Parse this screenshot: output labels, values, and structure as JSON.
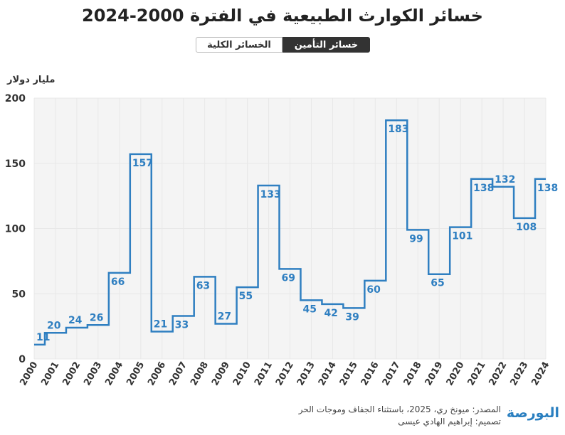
{
  "header": {
    "title": "خسائر الكوارث الطبيعية في الفترة 2000-2024"
  },
  "toggle": {
    "active": "خسائر التأمين",
    "inactive": "الخسائر الكلية"
  },
  "footer": {
    "source": "المصدر: ميونخ ري، 2025، باستثناء الجفاف وموجات الحر",
    "design": "تصميم: إبراهيم الهادي عيسى",
    "logo": "البورصة"
  },
  "colors": {
    "line": "#2f7fc1",
    "plot_bg": "#f4f4f4"
  },
  "chart_data": {
    "type": "line",
    "step": "mid",
    "ylabel": "مليار دولار",
    "ylim": [
      0,
      200
    ],
    "yticks": [
      0,
      50,
      100,
      150,
      200
    ],
    "x": [
      "2000",
      "2001",
      "2002",
      "2003",
      "2004",
      "2005",
      "2006",
      "2007",
      "2008",
      "2009",
      "2010",
      "2011",
      "2012",
      "2013",
      "2014",
      "2015",
      "2016",
      "2017",
      "2018",
      "2019",
      "2020",
      "2021",
      "2022",
      "2023",
      "2024"
    ],
    "values": [
      11,
      20,
      24,
      26,
      66,
      157,
      21,
      33,
      63,
      27,
      55,
      133,
      69,
      45,
      42,
      39,
      60,
      183,
      99,
      65,
      101,
      138,
      132,
      108,
      138
    ],
    "data_labels": true,
    "grid": true
  }
}
